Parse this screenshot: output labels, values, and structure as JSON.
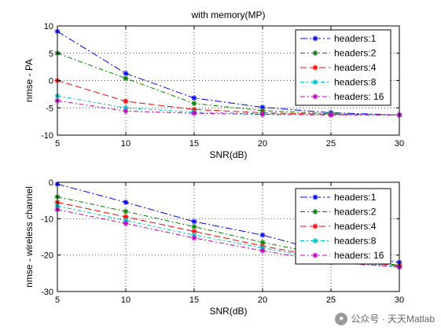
{
  "chart_data": [
    {
      "type": "line",
      "title": "with memory(MP)",
      "xlabel": "SNR(dB)",
      "ylabel": "nmse - PA",
      "xlim": [
        5,
        30
      ],
      "ylim": [
        -10,
        10
      ],
      "xticks": [
        5,
        10,
        15,
        20,
        25,
        30
      ],
      "yticks": [
        -10,
        -5,
        0,
        5,
        10
      ],
      "grid": true,
      "legend_position": "top-right",
      "x": [
        5,
        10,
        15,
        20,
        25,
        30
      ],
      "series": [
        {
          "name": "headers:1",
          "color": "#0000ff",
          "values": [
            9.0,
            1.3,
            -3.2,
            -4.9,
            -5.9,
            -6.3
          ]
        },
        {
          "name": "headers:2",
          "color": "#008000",
          "values": [
            5.0,
            0.4,
            -4.2,
            -5.5,
            -6.1,
            -6.3
          ]
        },
        {
          "name": "headers:4",
          "color": "#ff0000",
          "values": [
            0.0,
            -3.8,
            -5.3,
            -5.9,
            -6.2,
            -6.3
          ]
        },
        {
          "name": "headers:8",
          "color": "#00bfbf",
          "values": [
            -2.8,
            -5.0,
            -5.8,
            -6.1,
            -6.2,
            -6.3
          ]
        },
        {
          "name": "headers: 16",
          "color": "#bf00bf",
          "values": [
            -3.7,
            -5.6,
            -6.0,
            -6.2,
            -6.3,
            -6.3
          ]
        }
      ]
    },
    {
      "type": "line",
      "title": "",
      "xlabel": "SNR(dB)",
      "ylabel": "nmse - wireless channel",
      "xlim": [
        5,
        30
      ],
      "ylim": [
        -30,
        0
      ],
      "xticks": [
        5,
        10,
        15,
        20,
        25,
        30
      ],
      "yticks": [
        -30,
        -20,
        -10,
        0
      ],
      "grid": true,
      "legend_position": "top-right",
      "x": [
        5,
        10,
        15,
        20,
        25,
        30
      ],
      "series": [
        {
          "name": "headers:1",
          "color": "#0000ff",
          "values": [
            -0.5,
            -5.5,
            -10.8,
            -14.5,
            -19.5,
            -22.0
          ]
        },
        {
          "name": "headers:2",
          "color": "#008000",
          "values": [
            -4.0,
            -8.0,
            -12.2,
            -16.5,
            -20.3,
            -22.8
          ]
        },
        {
          "name": "headers:4",
          "color": "#ff0000",
          "values": [
            -5.5,
            -9.5,
            -13.5,
            -17.5,
            -21.0,
            -23.0
          ]
        },
        {
          "name": "headers:8",
          "color": "#00bfbf",
          "values": [
            -6.5,
            -10.5,
            -14.5,
            -18.0,
            -21.5,
            -23.2
          ]
        },
        {
          "name": "headers: 16",
          "color": "#bf00bf",
          "values": [
            -7.5,
            -11.3,
            -15.3,
            -18.8,
            -22.0,
            -23.3
          ]
        }
      ]
    }
  ],
  "watermark": {
    "text": "公众号 · 天天Matlab",
    "icon": "wechat-icon"
  }
}
